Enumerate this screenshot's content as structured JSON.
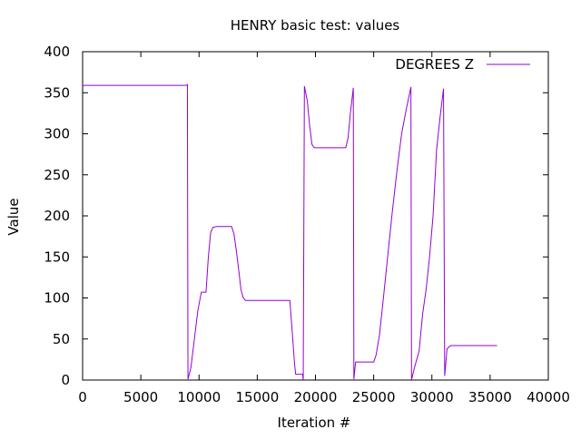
{
  "chart_data": {
    "type": "line",
    "title": "HENRY basic test: values",
    "xlabel": "Iteration #",
    "ylabel": "Value",
    "xlim": [
      0,
      40000
    ],
    "ylim": [
      0,
      400
    ],
    "xticks": [
      "0",
      "5000",
      "10000",
      "15000",
      "20000",
      "25000",
      "30000",
      "35000",
      "40000"
    ],
    "yticks": [
      "0",
      "50",
      "100",
      "150",
      "200",
      "250",
      "300",
      "350",
      "400"
    ],
    "grid": false,
    "legend_position": "top-right",
    "series": [
      {
        "name": "DEGREES Z",
        "color": "#9400d3",
        "points": [
          [
            0,
            359
          ],
          [
            8900,
            359
          ],
          [
            9000,
            360
          ],
          [
            9050,
            1
          ],
          [
            9300,
            15
          ],
          [
            9600,
            50
          ],
          [
            9900,
            85
          ],
          [
            10200,
            107
          ],
          [
            10600,
            107
          ],
          [
            10800,
            150
          ],
          [
            11000,
            180
          ],
          [
            11200,
            186
          ],
          [
            11500,
            187
          ],
          [
            12800,
            187
          ],
          [
            13000,
            178
          ],
          [
            13200,
            158
          ],
          [
            13400,
            135
          ],
          [
            13600,
            110
          ],
          [
            13800,
            100
          ],
          [
            14000,
            97
          ],
          [
            17800,
            97
          ],
          [
            18000,
            60
          ],
          [
            18200,
            20
          ],
          [
            18300,
            7
          ],
          [
            18900,
            7
          ],
          [
            18950,
            0
          ],
          [
            19050,
            358
          ],
          [
            19300,
            340
          ],
          [
            19500,
            310
          ],
          [
            19700,
            287
          ],
          [
            19900,
            283
          ],
          [
            22600,
            283
          ],
          [
            22800,
            295
          ],
          [
            23000,
            325
          ],
          [
            23250,
            356
          ],
          [
            23300,
            1
          ],
          [
            23450,
            22
          ],
          [
            25000,
            22
          ],
          [
            25200,
            30
          ],
          [
            25500,
            55
          ],
          [
            25800,
            95
          ],
          [
            26200,
            150
          ],
          [
            26600,
            205
          ],
          [
            27000,
            255
          ],
          [
            27400,
            300
          ],
          [
            27800,
            330
          ],
          [
            28200,
            357
          ],
          [
            28250,
            0
          ],
          [
            28500,
            15
          ],
          [
            28900,
            35
          ],
          [
            29200,
            80
          ],
          [
            29500,
            110
          ],
          [
            29800,
            150
          ],
          [
            30100,
            200
          ],
          [
            30400,
            280
          ],
          [
            30700,
            320
          ],
          [
            31000,
            355
          ],
          [
            31100,
            5
          ],
          [
            31300,
            38
          ],
          [
            31600,
            42
          ],
          [
            35600,
            42
          ]
        ]
      }
    ]
  }
}
